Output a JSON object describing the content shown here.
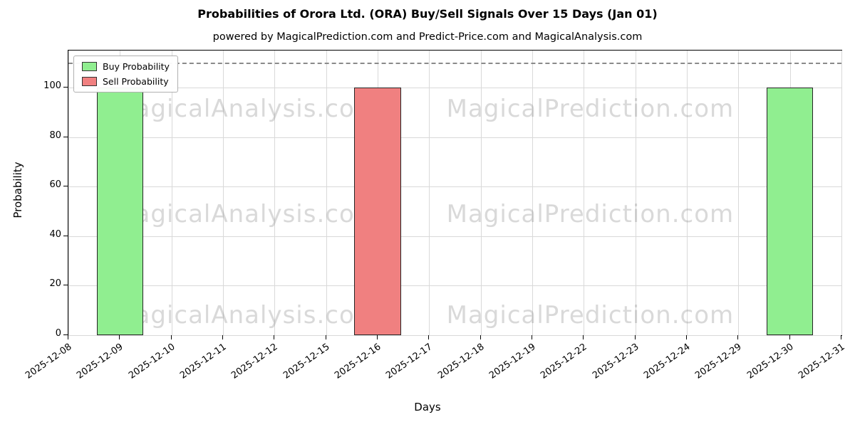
{
  "title": "Probabilities of Orora Ltd. (ORA) Buy/Sell Signals Over 15 Days (Jan 01)",
  "subtitle": "powered by MagicalPrediction.com and Predict-Price.com and MagicalAnalysis.com",
  "xlabel": "Days",
  "ylabel": "Probability",
  "watermarks": {
    "left": "MagicalAnalysis.com",
    "right": "MagicalPrediction.com"
  },
  "chart_data": {
    "type": "bar",
    "title": "Probabilities of Orora Ltd. (ORA) Buy/Sell Signals Over 15 Days (Jan 01)",
    "categories": [
      "2025-12-08",
      "2025-12-09",
      "2025-12-10",
      "2025-12-11",
      "2025-12-12",
      "2025-12-15",
      "2025-12-16",
      "2025-12-17",
      "2025-12-18",
      "2025-12-19",
      "2025-12-22",
      "2025-12-23",
      "2025-12-24",
      "2025-12-29",
      "2025-12-30",
      "2025-12-31"
    ],
    "series": [
      {
        "name": "Buy Probability",
        "color": "#90ee90",
        "values": [
          0,
          100,
          0,
          0,
          0,
          0,
          0,
          0,
          0,
          0,
          0,
          0,
          0,
          0,
          100,
          0
        ]
      },
      {
        "name": "Sell Probability",
        "color": "#f08080",
        "values": [
          0,
          0,
          0,
          0,
          0,
          0,
          100,
          0,
          0,
          0,
          0,
          0,
          0,
          0,
          0,
          0
        ]
      }
    ],
    "xlabel": "Days",
    "ylabel": "Probability",
    "ylim": [
      0,
      115
    ],
    "yticks": [
      0,
      20,
      40,
      60,
      80,
      100
    ],
    "dashed_line_y": 110,
    "grid": true,
    "legend_position": "upper left"
  }
}
